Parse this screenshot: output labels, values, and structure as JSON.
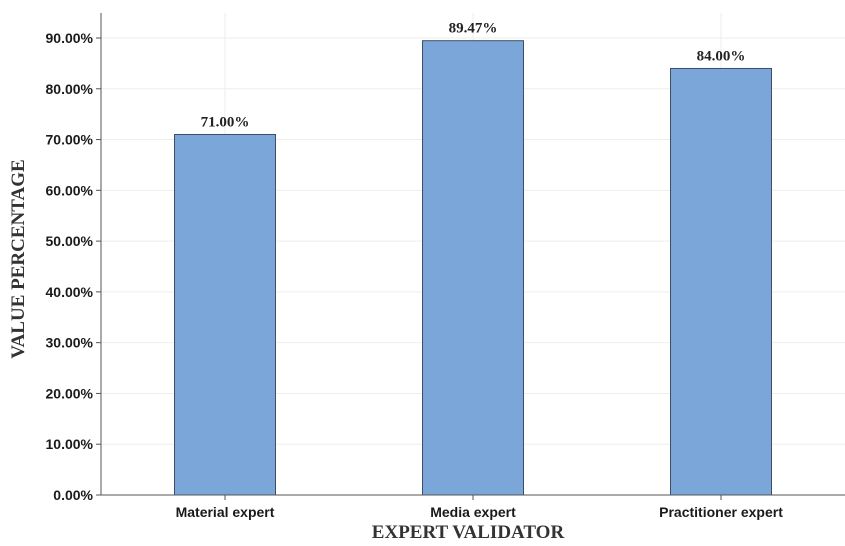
{
  "chart_data": {
    "type": "bar",
    "categories": [
      "Material expert",
      "Media expert",
      "Practitioner expert"
    ],
    "values": [
      71.0,
      89.47,
      84.0
    ],
    "data_labels": [
      "71.00%",
      "89.47%",
      "84.00%"
    ],
    "title": "",
    "xlabel": "EXPERT VALIDATOR",
    "ylabel": "VALUE PERCENTAGE",
    "ylim": [
      0,
      90
    ],
    "yticks": [
      0,
      10,
      20,
      30,
      40,
      50,
      60,
      70,
      80,
      90
    ],
    "ytick_labels": [
      "0.00%",
      "10.00%",
      "20.00%",
      "30.00%",
      "40.00%",
      "50.00%",
      "60.00%",
      "70.00%",
      "80.00%",
      "90.00%"
    ],
    "grid": true,
    "legend": "none",
    "bar_color": "#7aa6da",
    "bar_edge_color": "#3d4f66"
  }
}
